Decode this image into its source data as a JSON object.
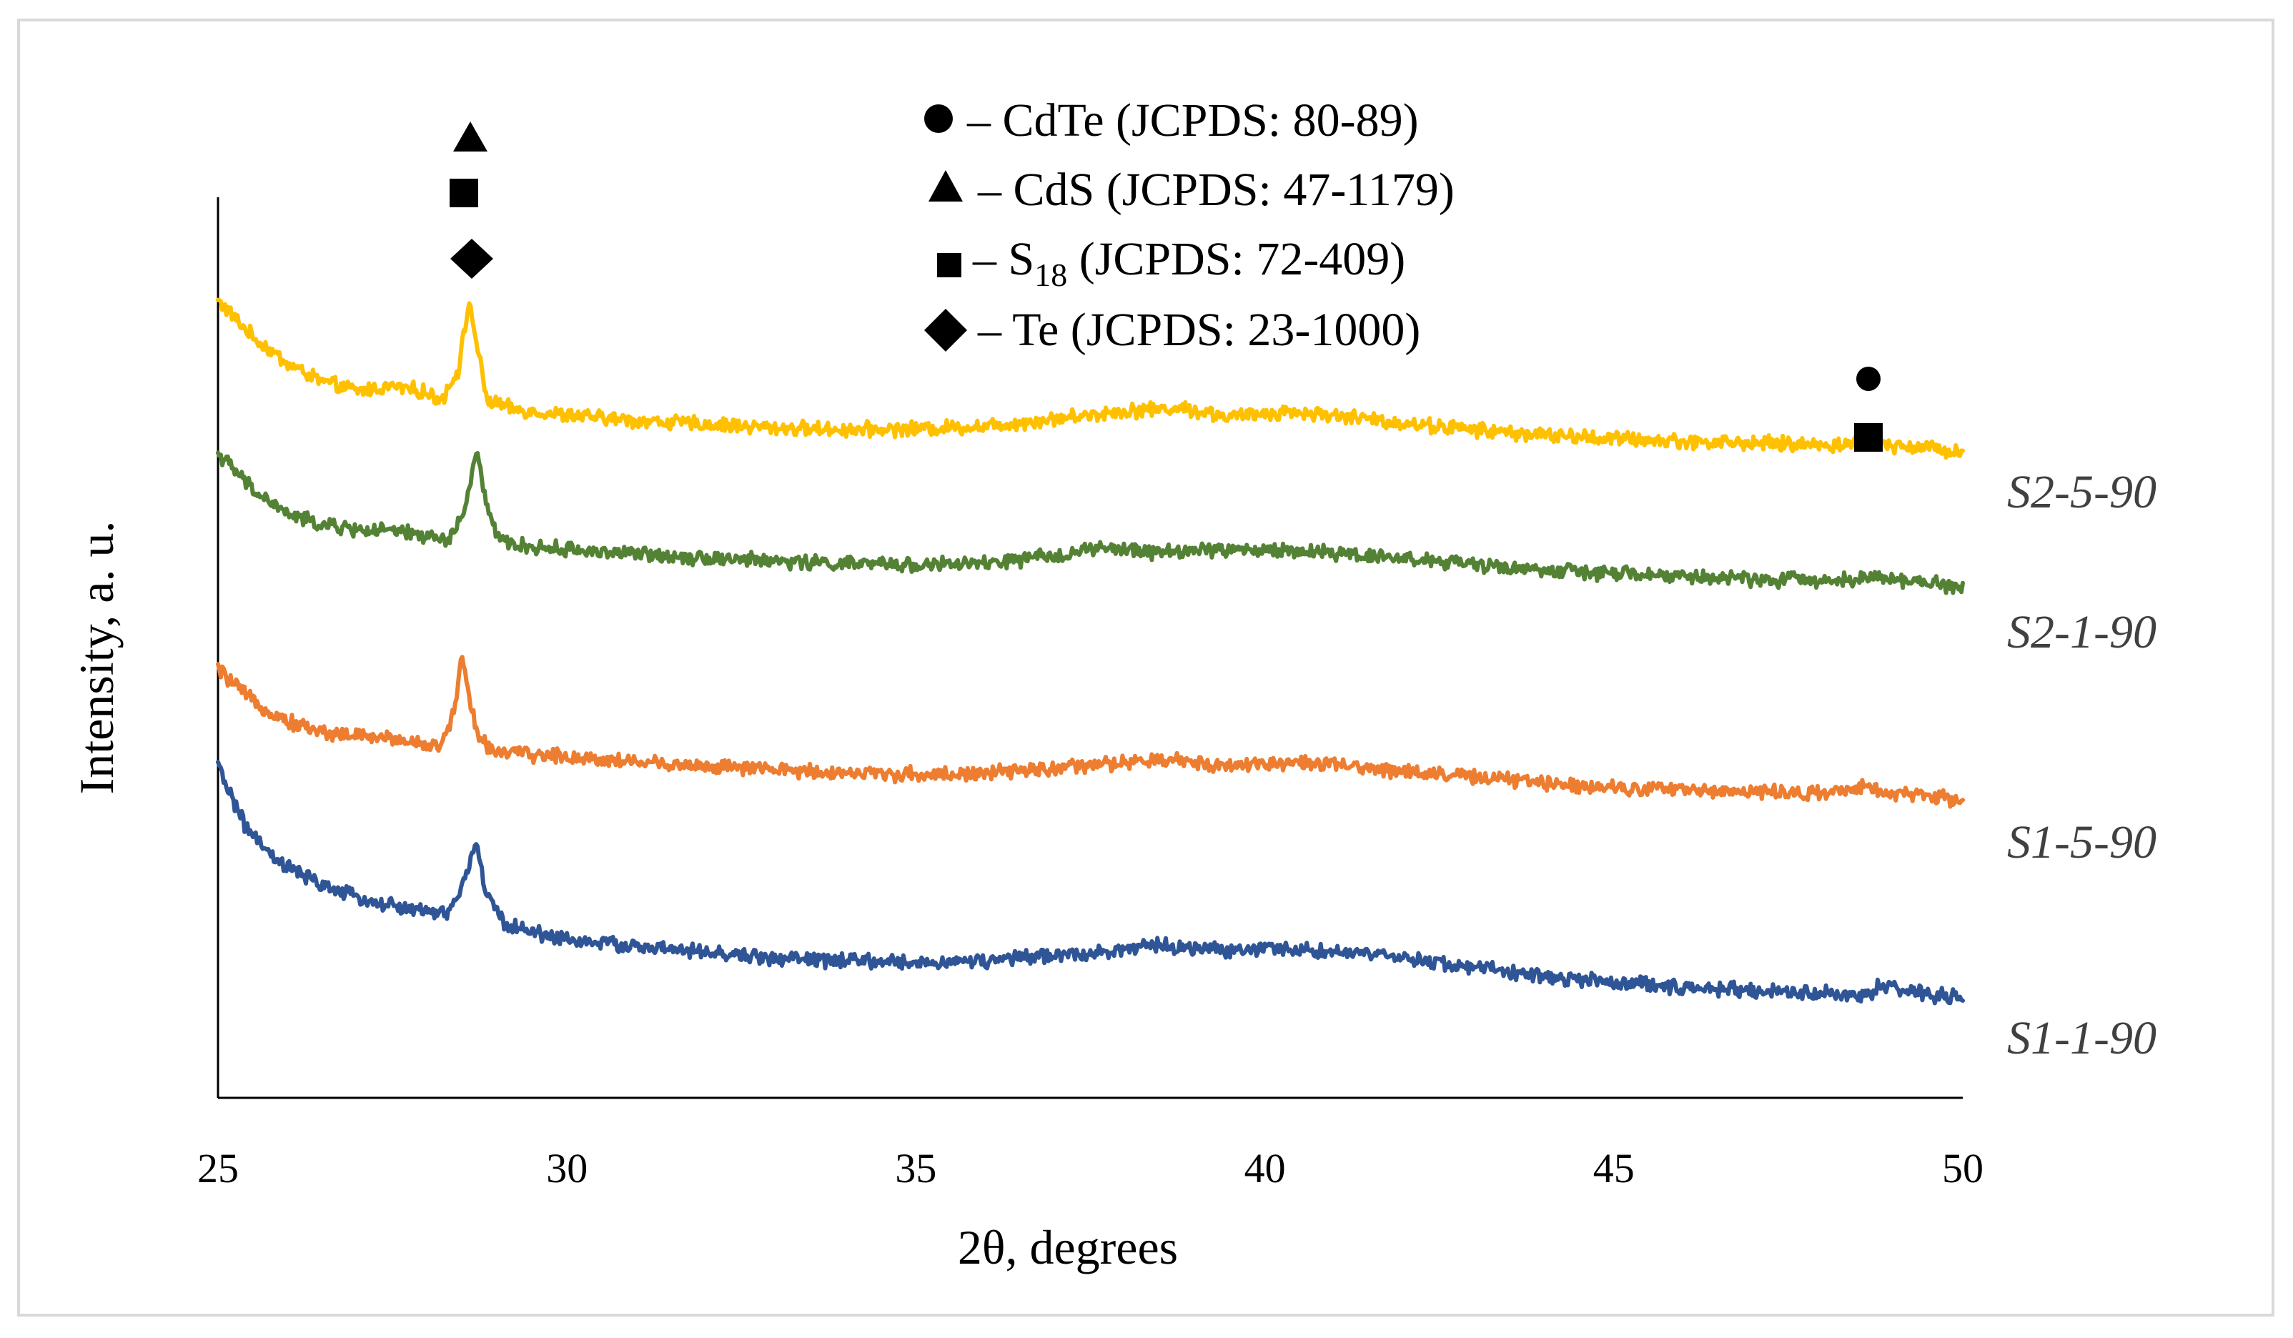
{
  "chart_data": {
    "type": "line",
    "title": "",
    "xlabel": "2θ, degrees",
    "ylabel": "Intensity, a. u.",
    "xlim": [
      25,
      50
    ],
    "xticks": [
      "25",
      "30",
      "35",
      "40",
      "45",
      "50"
    ],
    "ylim": [
      0,
      100
    ],
    "grid": false,
    "legend": {
      "placement": "top-center",
      "entries": [
        {
          "marker": "circle",
          "text": "– CdTe (JCPDS: 80-89)"
        },
        {
          "marker": "triangle",
          "text": "– CdS (JCPDS: 47-1179)"
        },
        {
          "marker": "square",
          "prefix": "– S",
          "subscript": "18",
          "suffix": " (JCPDS: 72-409)"
        },
        {
          "marker": "diamond",
          "text": "– Te (JCPDS: 23-1000)"
        }
      ]
    },
    "peak_markers": [
      {
        "x": 28.6,
        "symbols": [
          "triangle",
          "square",
          "diamond"
        ]
      },
      {
        "x": 48.6,
        "symbols": [
          "circle",
          "square"
        ]
      }
    ],
    "series": [
      {
        "name": "S2-5-90",
        "color": "#ffc000",
        "x": [
          25,
          25.5,
          26,
          26.5,
          27,
          27.5,
          27.9,
          28.2,
          28.45,
          28.6,
          28.7,
          28.85,
          29.2,
          30,
          31,
          32,
          33,
          34,
          35,
          36,
          37,
          38,
          38.8,
          39.5,
          40.3,
          41,
          42,
          43,
          44,
          45,
          46,
          47,
          48,
          48.5,
          48.65,
          48.8,
          49.5,
          50
        ],
        "values": [
          88.5,
          84.5,
          81.5,
          79.5,
          78.5,
          79,
          78.5,
          77.5,
          81,
          88.5,
          84,
          77.5,
          76.5,
          75.8,
          75.2,
          74.8,
          74.4,
          74.2,
          74.3,
          74.6,
          75.4,
          76.3,
          76.6,
          75.6,
          76.2,
          75.8,
          74.9,
          74.2,
          73.6,
          73.2,
          72.9,
          72.7,
          72.5,
          72.6,
          73.4,
          72.6,
          72.2,
          71.8
        ]
      },
      {
        "name": "S2-1-90",
        "color": "#548235",
        "x": [
          25,
          25.5,
          26,
          26.5,
          27,
          27.5,
          28,
          28.3,
          28.55,
          28.7,
          28.85,
          29,
          29.4,
          30,
          31,
          32,
          33,
          34,
          35,
          36,
          37,
          37.6,
          38.5,
          39.3,
          40.5,
          41.3,
          42,
          43,
          44,
          45,
          46,
          47,
          48,
          48.5,
          48.65,
          48.8,
          49.5,
          50
        ],
        "values": [
          71.6,
          67.5,
          64.8,
          63.6,
          63.1,
          62.9,
          62.4,
          61.8,
          65.5,
          71.8,
          66,
          62,
          61.2,
          60.9,
          60.4,
          60,
          59.6,
          59.3,
          59.2,
          59.3,
          60.2,
          61,
          60.6,
          60.9,
          60.7,
          60.4,
          59.9,
          59.2,
          58.6,
          58.2,
          57.9,
          57.6,
          57.5,
          57.6,
          58.3,
          57.6,
          57.2,
          56.8
        ]
      },
      {
        "name": "S1-5-90",
        "color": "#ed7d31",
        "x": [
          25,
          25.5,
          26,
          26.5,
          27,
          27.5,
          27.9,
          28.2,
          28.4,
          28.5,
          28.6,
          28.75,
          29,
          29.5,
          30,
          31,
          32,
          33,
          34,
          35,
          36,
          37,
          38,
          38.7,
          39.5,
          40.3,
          41,
          42,
          43,
          44,
          45,
          46,
          47,
          48,
          48.5,
          48.65,
          48.8,
          49.5,
          50
        ],
        "values": [
          47.6,
          44,
          41.8,
          40.6,
          40.2,
          39.9,
          39.4,
          38.9,
          43.5,
          49.6,
          44,
          39.7,
          38.5,
          38.1,
          37.9,
          37.3,
          36.8,
          36.4,
          36.1,
          35.9,
          36,
          36.6,
          37.2,
          37.5,
          36.9,
          37.3,
          36.9,
          36.3,
          35.6,
          35,
          34.5,
          34.2,
          34,
          33.8,
          34,
          34.9,
          34,
          33.5,
          33
        ]
      },
      {
        "name": "S1-1-90",
        "color": "#2f5597",
        "x": [
          25,
          25.4,
          25.8,
          26.3,
          26.8,
          27.3,
          27.8,
          28.3,
          28.55,
          28.7,
          28.85,
          29.1,
          29.5,
          30,
          31,
          32,
          33,
          34,
          35,
          36,
          37,
          38,
          38.5,
          39.3,
          40.3,
          41,
          42,
          43,
          44,
          45,
          46,
          47,
          48,
          48.5,
          48.65,
          48.8,
          49.5,
          50
        ],
        "values": [
          36.8,
          30,
          26.5,
          24.3,
          22.7,
          21.6,
          20.9,
          20.4,
          24.5,
          28.4,
          22.5,
          19.4,
          18.4,
          17.6,
          16.8,
          16.1,
          15.5,
          15.2,
          15,
          15.2,
          15.8,
          16.5,
          16.9,
          16.4,
          16.6,
          16.2,
          15.5,
          14.5,
          13.5,
          12.8,
          12.3,
          11.9,
          11.6,
          11.4,
          11.6,
          12.4,
          11.5,
          11
        ]
      }
    ]
  }
}
